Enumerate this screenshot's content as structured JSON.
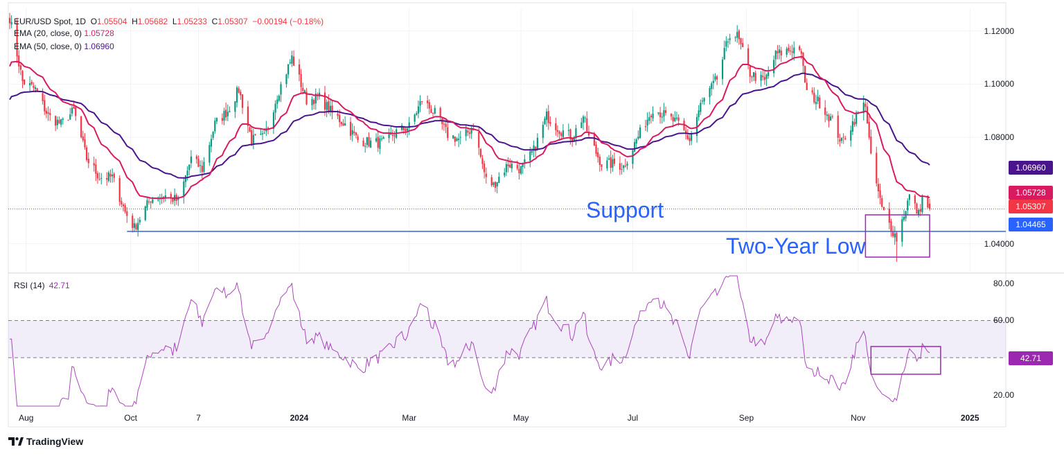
{
  "header": {
    "symbol": "EUR/USD Spot, 1D",
    "ohlc": {
      "o_label": "O",
      "o": "1.05504",
      "h_label": "H",
      "h": "1.05682",
      "l_label": "L",
      "l": "1.05233",
      "c_label": "C",
      "c": "1.05307",
      "change": "−0.00194 (−0.18%)"
    },
    "ema20_label": "EMA (20, close, 0)",
    "ema20_value": "1.05728",
    "ema50_label": "EMA (50, close, 0)",
    "ema50_value": "1.06960"
  },
  "rsi": {
    "label": "RSI (14)",
    "value": "42.71"
  },
  "annotations": {
    "support": "Support",
    "two_year_low": "Two-Year Low"
  },
  "price_labels": {
    "ema50": "1.06960",
    "ema20": "1.05728",
    "close": "1.05307",
    "support": "1.04465"
  },
  "colors": {
    "up": "#089981",
    "down": "#f23645",
    "ema20": "#d81b60",
    "ema50": "#4a148c",
    "support": "#2962ff",
    "rsi": "#9c27b0",
    "box": "#9c27b0"
  },
  "brand": {
    "name": "TradingView",
    "icon": "tradingview-logo-icon"
  },
  "chart_data": [
    {
      "type": "candlestick",
      "title": "EUR/USD Spot, 1D",
      "price_axis": {
        "ticks": [
          "1.12000",
          "1.10000",
          "1.08000",
          "1.04000"
        ],
        "ylim": [
          1.0295,
          1.1285
        ]
      },
      "x_tick_labels": [
        "Aug",
        "Oct",
        "7",
        "2024",
        "Mar",
        "May",
        "Jul",
        "Sep",
        "Nov",
        "2025"
      ],
      "close_anchors": [
        [
          "2023-07-27",
          1.125
        ],
        [
          "2023-08-03",
          1.101
        ],
        [
          "2023-08-10",
          1.098
        ],
        [
          "2023-08-17",
          1.088
        ],
        [
          "2023-08-24",
          1.085
        ],
        [
          "2023-08-31",
          1.09
        ],
        [
          "2023-09-07",
          1.072
        ],
        [
          "2023-09-14",
          1.065
        ],
        [
          "2023-09-21",
          1.065
        ],
        [
          "2023-09-28",
          1.052
        ],
        [
          "2023-10-03",
          1.046
        ],
        [
          "2023-10-12",
          1.057
        ],
        [
          "2023-10-20",
          1.058
        ],
        [
          "2023-10-27",
          1.056
        ],
        [
          "2023-11-03",
          1.072
        ],
        [
          "2023-11-09",
          1.068
        ],
        [
          "2023-11-16",
          1.085
        ],
        [
          "2023-11-23",
          1.09
        ],
        [
          "2023-11-29",
          1.098
        ],
        [
          "2023-12-06",
          1.079
        ],
        [
          "2023-12-13",
          1.08
        ],
        [
          "2023-12-20",
          1.096
        ],
        [
          "2023-12-28",
          1.11
        ],
        [
          "2024-01-05",
          1.094
        ],
        [
          "2024-01-12",
          1.095
        ],
        [
          "2024-01-19",
          1.089
        ],
        [
          "2024-01-26",
          1.085
        ],
        [
          "2024-02-02",
          1.079
        ],
        [
          "2024-02-09",
          1.078
        ],
        [
          "2024-02-16",
          1.078
        ],
        [
          "2024-02-23",
          1.082
        ],
        [
          "2024-03-01",
          1.084
        ],
        [
          "2024-03-08",
          1.094
        ],
        [
          "2024-03-15",
          1.089
        ],
        [
          "2024-03-22",
          1.081
        ],
        [
          "2024-03-29",
          1.079
        ],
        [
          "2024-04-05",
          1.084
        ],
        [
          "2024-04-12",
          1.064
        ],
        [
          "2024-04-16",
          1.062
        ],
        [
          "2024-04-24",
          1.07
        ],
        [
          "2024-05-01",
          1.068
        ],
        [
          "2024-05-08",
          1.075
        ],
        [
          "2024-05-15",
          1.088
        ],
        [
          "2024-05-22",
          1.083
        ],
        [
          "2024-05-29",
          1.08
        ],
        [
          "2024-06-04",
          1.088
        ],
        [
          "2024-06-07",
          1.08
        ],
        [
          "2024-06-14",
          1.07
        ],
        [
          "2024-06-21",
          1.07
        ],
        [
          "2024-06-26",
          1.069
        ],
        [
          "2024-07-03",
          1.079
        ],
        [
          "2024-07-12",
          1.091
        ],
        [
          "2024-07-19",
          1.088
        ],
        [
          "2024-07-26",
          1.085
        ],
        [
          "2024-08-01",
          1.079
        ],
        [
          "2024-08-07",
          1.092
        ],
        [
          "2024-08-16",
          1.102
        ],
        [
          "2024-08-23",
          1.119
        ],
        [
          "2024-08-27",
          1.118
        ],
        [
          "2024-09-03",
          1.104
        ],
        [
          "2024-09-11",
          1.101
        ],
        [
          "2024-09-17",
          1.111
        ],
        [
          "2024-09-25",
          1.113
        ],
        [
          "2024-09-30",
          1.114
        ],
        [
          "2024-10-04",
          1.097
        ],
        [
          "2024-10-11",
          1.093
        ],
        [
          "2024-10-18",
          1.086
        ],
        [
          "2024-10-23",
          1.078
        ],
        [
          "2024-10-31",
          1.088
        ],
        [
          "2024-11-05",
          1.093
        ],
        [
          "2024-11-08",
          1.072
        ],
        [
          "2024-11-14",
          1.053
        ],
        [
          "2024-11-22",
          1.042
        ],
        [
          "2024-11-29",
          1.058
        ],
        [
          "2024-12-04",
          1.051
        ],
        [
          "2024-12-06",
          1.057
        ],
        [
          "2024-12-10",
          1.053
        ]
      ],
      "last_bar": {
        "open": 1.05504,
        "high": 1.05682,
        "low": 1.05233,
        "close": 1.05307
      },
      "ema20_last": 1.05728,
      "ema50_last": 1.0696,
      "support_level": 1.04465,
      "two_year_low": 1.0332
    },
    {
      "type": "line",
      "title": "RSI (14)",
      "ylim": [
        14,
        84
      ],
      "ticks": [
        "80.00",
        "60.00",
        "20.00"
      ],
      "overbought": 60,
      "oversold": 40,
      "last": 42.71
    }
  ]
}
